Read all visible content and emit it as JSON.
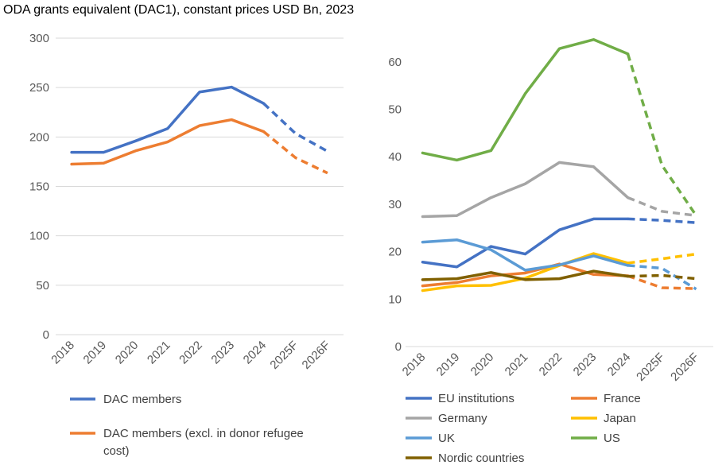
{
  "title": "ODA grants equivalent (DAC1), constant prices USD Bn, 2023",
  "chart_data": [
    {
      "type": "line",
      "categories": [
        "2018",
        "2019",
        "2020",
        "2021",
        "2022",
        "2023",
        "2024",
        "2025F",
        "2026F"
      ],
      "forecast_from": "2024",
      "ylim": [
        0,
        300
      ],
      "yticks": [
        0,
        50,
        100,
        150,
        200,
        250,
        300
      ],
      "grid": true,
      "legend": "bottom",
      "series": [
        {
          "name": "DAC members",
          "color": "#4472C4",
          "values": [
            184.5,
            184.5,
            196,
            208.5,
            245.5,
            250.5,
            234,
            203.5,
            185.5
          ]
        },
        {
          "name": "DAC members (excl. in donor refugee cost)",
          "color": "#ED7D31",
          "values": [
            172.5,
            173.5,
            186,
            195,
            211.5,
            217.5,
            205.5,
            179,
            163.5
          ]
        }
      ]
    },
    {
      "type": "line",
      "categories": [
        "2018",
        "2019",
        "2020",
        "2021",
        "2022",
        "2023",
        "2024",
        "2025F",
        "2026F"
      ],
      "forecast_from": "2024",
      "ylim": [
        0,
        65
      ],
      "yticks": [
        0,
        10,
        20,
        30,
        40,
        50,
        60
      ],
      "grid": false,
      "legend": "bottom",
      "series": [
        {
          "name": "EU institutions",
          "color": "#4472C4",
          "values": [
            17.8,
            16.8,
            21.1,
            19.5,
            24.6,
            26.9,
            26.9,
            26.6,
            26.1
          ]
        },
        {
          "name": "France",
          "color": "#ED7D31",
          "values": [
            12.8,
            13.5,
            14.9,
            15.5,
            17.4,
            15.2,
            14.9,
            12.4,
            12.2
          ]
        },
        {
          "name": "Germany",
          "color": "#A5A5A5",
          "values": [
            27.4,
            27.6,
            31.4,
            34.3,
            38.8,
            37.9,
            31.4,
            28.5,
            27.6
          ]
        },
        {
          "name": "Japan",
          "color": "#FFC000",
          "values": [
            11.8,
            12.8,
            12.9,
            14.4,
            17.1,
            19.6,
            17.6,
            18.5,
            19.5
          ]
        },
        {
          "name": "UK",
          "color": "#5B9BD5",
          "values": [
            22.0,
            22.5,
            20.4,
            16.1,
            17.2,
            19.1,
            17.1,
            16.5,
            12.1
          ]
        },
        {
          "name": "US",
          "color": "#70AD47",
          "values": [
            40.8,
            39.3,
            41.3,
            53.3,
            62.8,
            64.7,
            61.7,
            38.2,
            27.6
          ]
        },
        {
          "name": "Nordic countries",
          "color": "#806000",
          "values": [
            14.1,
            14.3,
            15.6,
            14.1,
            14.3,
            15.9,
            14.8,
            15.0,
            14.3
          ]
        }
      ]
    }
  ]
}
